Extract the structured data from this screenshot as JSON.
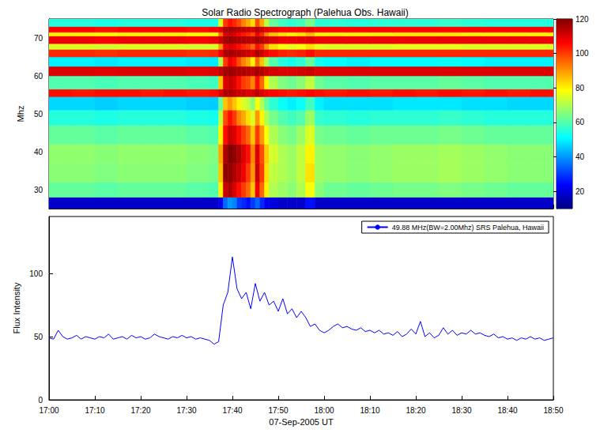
{
  "chart_data": [
    {
      "type": "heatmap",
      "title": "Solar Radio Spectrograph (Palehua Obs. Hawaii)",
      "ylabel": "Mhz",
      "xlim": [
        0,
        110
      ],
      "xticks": [
        0,
        10,
        20,
        30,
        40,
        50,
        60,
        70,
        80,
        90,
        100,
        110
      ],
      "ylim": [
        25,
        75
      ],
      "yticks": [
        30,
        40,
        50,
        60,
        70
      ],
      "tick_labels": "y",
      "grid": false,
      "time_edges": [
        0,
        5,
        10,
        15,
        20,
        25,
        30,
        35,
        37,
        38,
        39,
        40,
        41,
        42,
        43,
        44,
        45,
        46,
        47,
        48,
        50,
        52,
        54,
        56,
        58,
        60,
        65,
        70,
        75,
        80,
        85,
        90,
        95,
        100,
        105,
        110
      ],
      "freq_edges": [
        25,
        28,
        32,
        37,
        42,
        47,
        51,
        54.5,
        56.5,
        60,
        62.5,
        65,
        67,
        68.5,
        70.5,
        71.5,
        73,
        75
      ],
      "cells": [
        [
          18,
          18,
          18,
          18,
          18,
          18,
          18,
          18,
          22,
          35,
          40,
          38,
          30,
          28,
          25,
          30,
          35,
          28,
          22,
          20,
          18,
          18,
          18,
          25,
          18,
          18,
          18,
          18,
          18,
          18,
          18,
          18,
          18,
          18,
          18
        ],
        [
          62,
          62,
          61,
          62,
          62,
          62,
          61,
          60,
          80,
          112,
          115,
          110,
          105,
          100,
          95,
          85,
          108,
          95,
          80,
          70,
          68,
          66,
          70,
          78,
          66,
          63,
          62,
          63,
          64,
          64,
          65,
          64,
          63,
          62,
          62
        ],
        [
          66,
          66,
          65,
          66,
          66,
          66,
          65,
          64,
          85,
          118,
          118,
          115,
          112,
          108,
          100,
          90,
          112,
          100,
          82,
          72,
          70,
          68,
          72,
          82,
          68,
          67,
          66,
          67,
          68,
          68,
          69,
          68,
          67,
          66,
          66
        ],
        [
          67,
          67,
          66,
          67,
          67,
          67,
          66,
          65,
          88,
          115,
          120,
          118,
          115,
          110,
          105,
          92,
          110,
          98,
          84,
          74,
          70,
          68,
          72,
          80,
          68,
          67,
          66,
          67,
          68,
          68,
          69,
          68,
          67,
          66,
          66
        ],
        [
          62,
          62,
          61,
          62,
          62,
          62,
          61,
          60,
          80,
          105,
          112,
          110,
          105,
          100,
          95,
          85,
          100,
          90,
          78,
          70,
          66,
          64,
          68,
          75,
          64,
          63,
          62,
          63,
          63,
          63,
          64,
          63,
          62,
          62,
          62
        ],
        [
          55,
          55,
          54,
          55,
          55,
          55,
          54,
          53,
          72,
          98,
          105,
          100,
          92,
          88,
          82,
          75,
          90,
          80,
          70,
          64,
          60,
          58,
          60,
          68,
          57,
          56,
          55,
          56,
          56,
          56,
          57,
          56,
          55,
          55,
          55
        ],
        [
          47,
          47,
          46,
          47,
          47,
          47,
          46,
          46,
          62,
          85,
          90,
          85,
          80,
          75,
          72,
          66,
          78,
          70,
          62,
          56,
          52,
          50,
          52,
          58,
          50,
          48,
          48,
          48,
          49,
          49,
          49,
          48,
          48,
          47,
          47
        ],
        [
          105,
          104,
          105,
          105,
          104,
          105,
          104,
          105,
          110,
          115,
          115,
          114,
          112,
          112,
          110,
          110,
          114,
          110,
          108,
          106,
          105,
          104,
          105,
          106,
          105,
          104,
          105,
          104,
          105,
          104,
          105,
          104,
          105,
          104,
          105
        ],
        [
          60,
          60,
          59,
          60,
          60,
          60,
          59,
          58,
          85,
          110,
          112,
          110,
          105,
          100,
          98,
          92,
          105,
          95,
          80,
          70,
          65,
          63,
          66,
          72,
          63,
          61,
          60,
          61,
          61,
          61,
          62,
          61,
          60,
          60,
          60
        ],
        [
          110,
          110,
          109,
          110,
          110,
          110,
          109,
          110,
          113,
          116,
          117,
          116,
          115,
          115,
          114,
          113,
          116,
          114,
          112,
          111,
          110,
          110,
          111,
          112,
          110,
          110,
          110,
          110,
          110,
          110,
          110,
          110,
          110,
          110,
          110
        ],
        [
          50,
          50,
          49,
          50,
          50,
          50,
          49,
          49,
          70,
          100,
          108,
          105,
          98,
          92,
          88,
          80,
          95,
          85,
          70,
          60,
          55,
          53,
          56,
          62,
          53,
          51,
          50,
          51,
          51,
          51,
          52,
          51,
          50,
          50,
          50
        ],
        [
          102,
          102,
          101,
          102,
          102,
          102,
          101,
          102,
          108,
          115,
          116,
          115,
          114,
          113,
          112,
          110,
          115,
          112,
          108,
          105,
          103,
          102,
          103,
          105,
          102,
          102,
          102,
          102,
          102,
          102,
          102,
          102,
          102,
          102,
          102
        ],
        [
          75,
          75,
          74,
          75,
          75,
          75,
          74,
          74,
          90,
          108,
          110,
          108,
          105,
          102,
          100,
          95,
          105,
          100,
          90,
          82,
          78,
          76,
          78,
          82,
          76,
          75,
          75,
          75,
          76,
          76,
          76,
          75,
          75,
          75,
          75
        ],
        [
          108,
          108,
          107,
          108,
          108,
          108,
          107,
          108,
          112,
          116,
          117,
          116,
          115,
          115,
          114,
          113,
          116,
          114,
          112,
          110,
          108,
          108,
          109,
          110,
          108,
          108,
          108,
          108,
          108,
          108,
          108,
          108,
          108,
          108,
          108
        ],
        [
          80,
          80,
          79,
          80,
          80,
          80,
          79,
          79,
          95,
          110,
          112,
          110,
          106,
          104,
          102,
          98,
          108,
          102,
          92,
          85,
          82,
          80,
          82,
          86,
          80,
          80,
          80,
          80,
          81,
          81,
          81,
          80,
          80,
          80,
          80
        ],
        [
          106,
          106,
          105,
          106,
          106,
          106,
          105,
          106,
          110,
          115,
          116,
          115,
          114,
          113,
          112,
          111,
          115,
          112,
          110,
          108,
          106,
          106,
          107,
          108,
          106,
          106,
          106,
          106,
          106,
          106,
          106,
          106,
          106,
          106,
          106
        ],
        [
          55,
          55,
          54,
          55,
          55,
          55,
          54,
          54,
          75,
          100,
          105,
          102,
          98,
          92,
          88,
          82,
          98,
          88,
          72,
          62,
          58,
          56,
          58,
          64,
          56,
          56,
          55,
          56,
          56,
          56,
          57,
          56,
          55,
          55,
          55
        ]
      ],
      "colorbar": {
        "range": [
          10,
          120
        ],
        "ticks": [
          20,
          40,
          60,
          80,
          100,
          120
        ]
      }
    },
    {
      "type": "line",
      "xlabel": "07-Sep-2005 UT",
      "ylabel": "Flux Intensity",
      "xlim": [
        0,
        110
      ],
      "xticks": [
        {
          "value": 0,
          "label": "17:00"
        },
        {
          "value": 10,
          "label": "17:10"
        },
        {
          "value": 20,
          "label": "17:20"
        },
        {
          "value": 30,
          "label": "17:30"
        },
        {
          "value": 40,
          "label": "17:40"
        },
        {
          "value": 50,
          "label": "17:50"
        },
        {
          "value": 60,
          "label": "18:00"
        },
        {
          "value": 70,
          "label": "18:10"
        },
        {
          "value": 80,
          "label": "18:20"
        },
        {
          "value": 90,
          "label": "18:30"
        },
        {
          "value": 100,
          "label": "18:40"
        },
        {
          "value": 110,
          "label": "18:50"
        }
      ],
      "ylim": [
        0,
        145
      ],
      "yticks": [
        0,
        50,
        100
      ],
      "grid": false,
      "legend": "upper right",
      "x": [
        0,
        1,
        2,
        3,
        4,
        5,
        6,
        7,
        8,
        9,
        10,
        11,
        12,
        13,
        14,
        15,
        16,
        17,
        18,
        19,
        20,
        21,
        22,
        23,
        24,
        25,
        26,
        27,
        28,
        29,
        30,
        31,
        32,
        33,
        34,
        35,
        36,
        37,
        38,
        39,
        40,
        41,
        42,
        43,
        44,
        45,
        46,
        47,
        48,
        49,
        50,
        51,
        52,
        53,
        54,
        55,
        56,
        57,
        58,
        59,
        60,
        61,
        62,
        63,
        64,
        65,
        66,
        67,
        68,
        69,
        70,
        71,
        72,
        73,
        74,
        75,
        76,
        77,
        78,
        79,
        80,
        81,
        82,
        83,
        84,
        85,
        86,
        87,
        88,
        89,
        90,
        91,
        92,
        93,
        94,
        95,
        96,
        97,
        98,
        99,
        100,
        101,
        102,
        103,
        104,
        105,
        106,
        107,
        108,
        109,
        110
      ],
      "series": [
        {
          "name": "49.88 MHz(BW=2.00Mhz) SRS Palehua, Hawaii",
          "color": "#0000ff",
          "values": [
            49,
            48,
            55,
            50,
            48,
            49,
            51,
            48,
            50,
            49,
            48,
            50,
            49,
            52,
            48,
            49,
            50,
            48,
            51,
            49,
            50,
            48,
            49,
            52,
            50,
            49,
            48,
            50,
            49,
            51,
            49,
            50,
            48,
            49,
            48,
            47,
            44,
            46,
            75,
            85,
            113,
            88,
            80,
            85,
            72,
            92,
            78,
            85,
            75,
            78,
            70,
            80,
            68,
            72,
            65,
            70,
            65,
            58,
            60,
            55,
            53,
            55,
            58,
            60,
            57,
            58,
            56,
            55,
            57,
            54,
            55,
            53,
            55,
            52,
            53,
            51,
            54,
            50,
            52,
            56,
            52,
            62,
            50,
            53,
            49,
            51,
            57,
            52,
            55,
            51,
            53,
            52,
            55,
            52,
            53,
            51,
            50,
            52,
            49,
            50,
            48,
            49,
            47,
            49,
            48,
            50,
            48,
            49,
            47,
            48,
            49
          ]
        }
      ]
    }
  ]
}
